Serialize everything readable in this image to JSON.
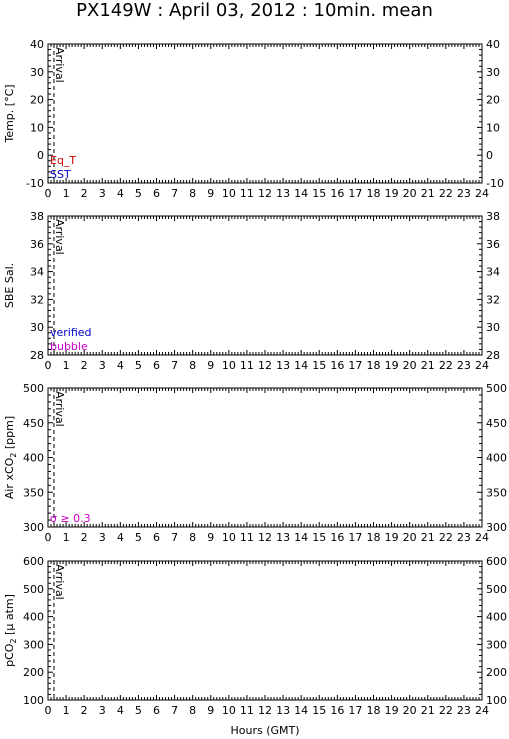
{
  "title": "PX149W : April 03, 2012 : 10min. mean",
  "xlabel": "Hours (GMT)",
  "chart_data": [
    {
      "type": "line",
      "ylabel": "Temp. [°C]",
      "ylim": [
        -10,
        40
      ],
      "yticks": [
        -10,
        0,
        10,
        20,
        30,
        40
      ],
      "xlim": [
        0,
        24
      ],
      "annotation": "Arrival",
      "annotation_x": 0.33,
      "series": [
        {
          "name": "Eq_T",
          "color": "#cc0000",
          "x": [],
          "y": []
        },
        {
          "name": "SST",
          "color": "#0000cc",
          "x": [],
          "y": []
        }
      ]
    },
    {
      "type": "line",
      "ylabel": "SBE Sal.",
      "ylim": [
        28,
        38
      ],
      "yticks": [
        28,
        30,
        32,
        34,
        36,
        38
      ],
      "xlim": [
        0,
        24
      ],
      "annotation": "Arrival",
      "annotation_x": 0.33,
      "series": [
        {
          "name": "verified",
          "color": "#0000cc",
          "x": [],
          "y": []
        },
        {
          "name": "bubble",
          "color": "#cc00cc",
          "x": [],
          "y": []
        }
      ]
    },
    {
      "type": "line",
      "ylabel_parts": [
        "Air xCO",
        "2",
        " [ppm]"
      ],
      "ylim": [
        300,
        500
      ],
      "yticks": [
        300,
        350,
        400,
        450,
        500
      ],
      "xlim": [
        0,
        24
      ],
      "annotation": "Arrival",
      "annotation_x": 0.33,
      "series": [
        {
          "name": "σ ≥ 0.3",
          "color": "#cc00cc",
          "x": [],
          "y": []
        }
      ]
    },
    {
      "type": "line",
      "ylabel_parts": [
        "pCO",
        "2",
        " [μ atm]"
      ],
      "ylim": [
        100,
        600
      ],
      "yticks": [
        100,
        200,
        300,
        400,
        500,
        600
      ],
      "xlim": [
        0,
        24
      ],
      "xticks": [
        0,
        1,
        2,
        3,
        4,
        5,
        6,
        7,
        8,
        9,
        10,
        11,
        12,
        13,
        14,
        15,
        16,
        17,
        18,
        19,
        20,
        21,
        22,
        23,
        24
      ],
      "annotation": "Arrival",
      "annotation_x": 0.33,
      "series": []
    }
  ]
}
